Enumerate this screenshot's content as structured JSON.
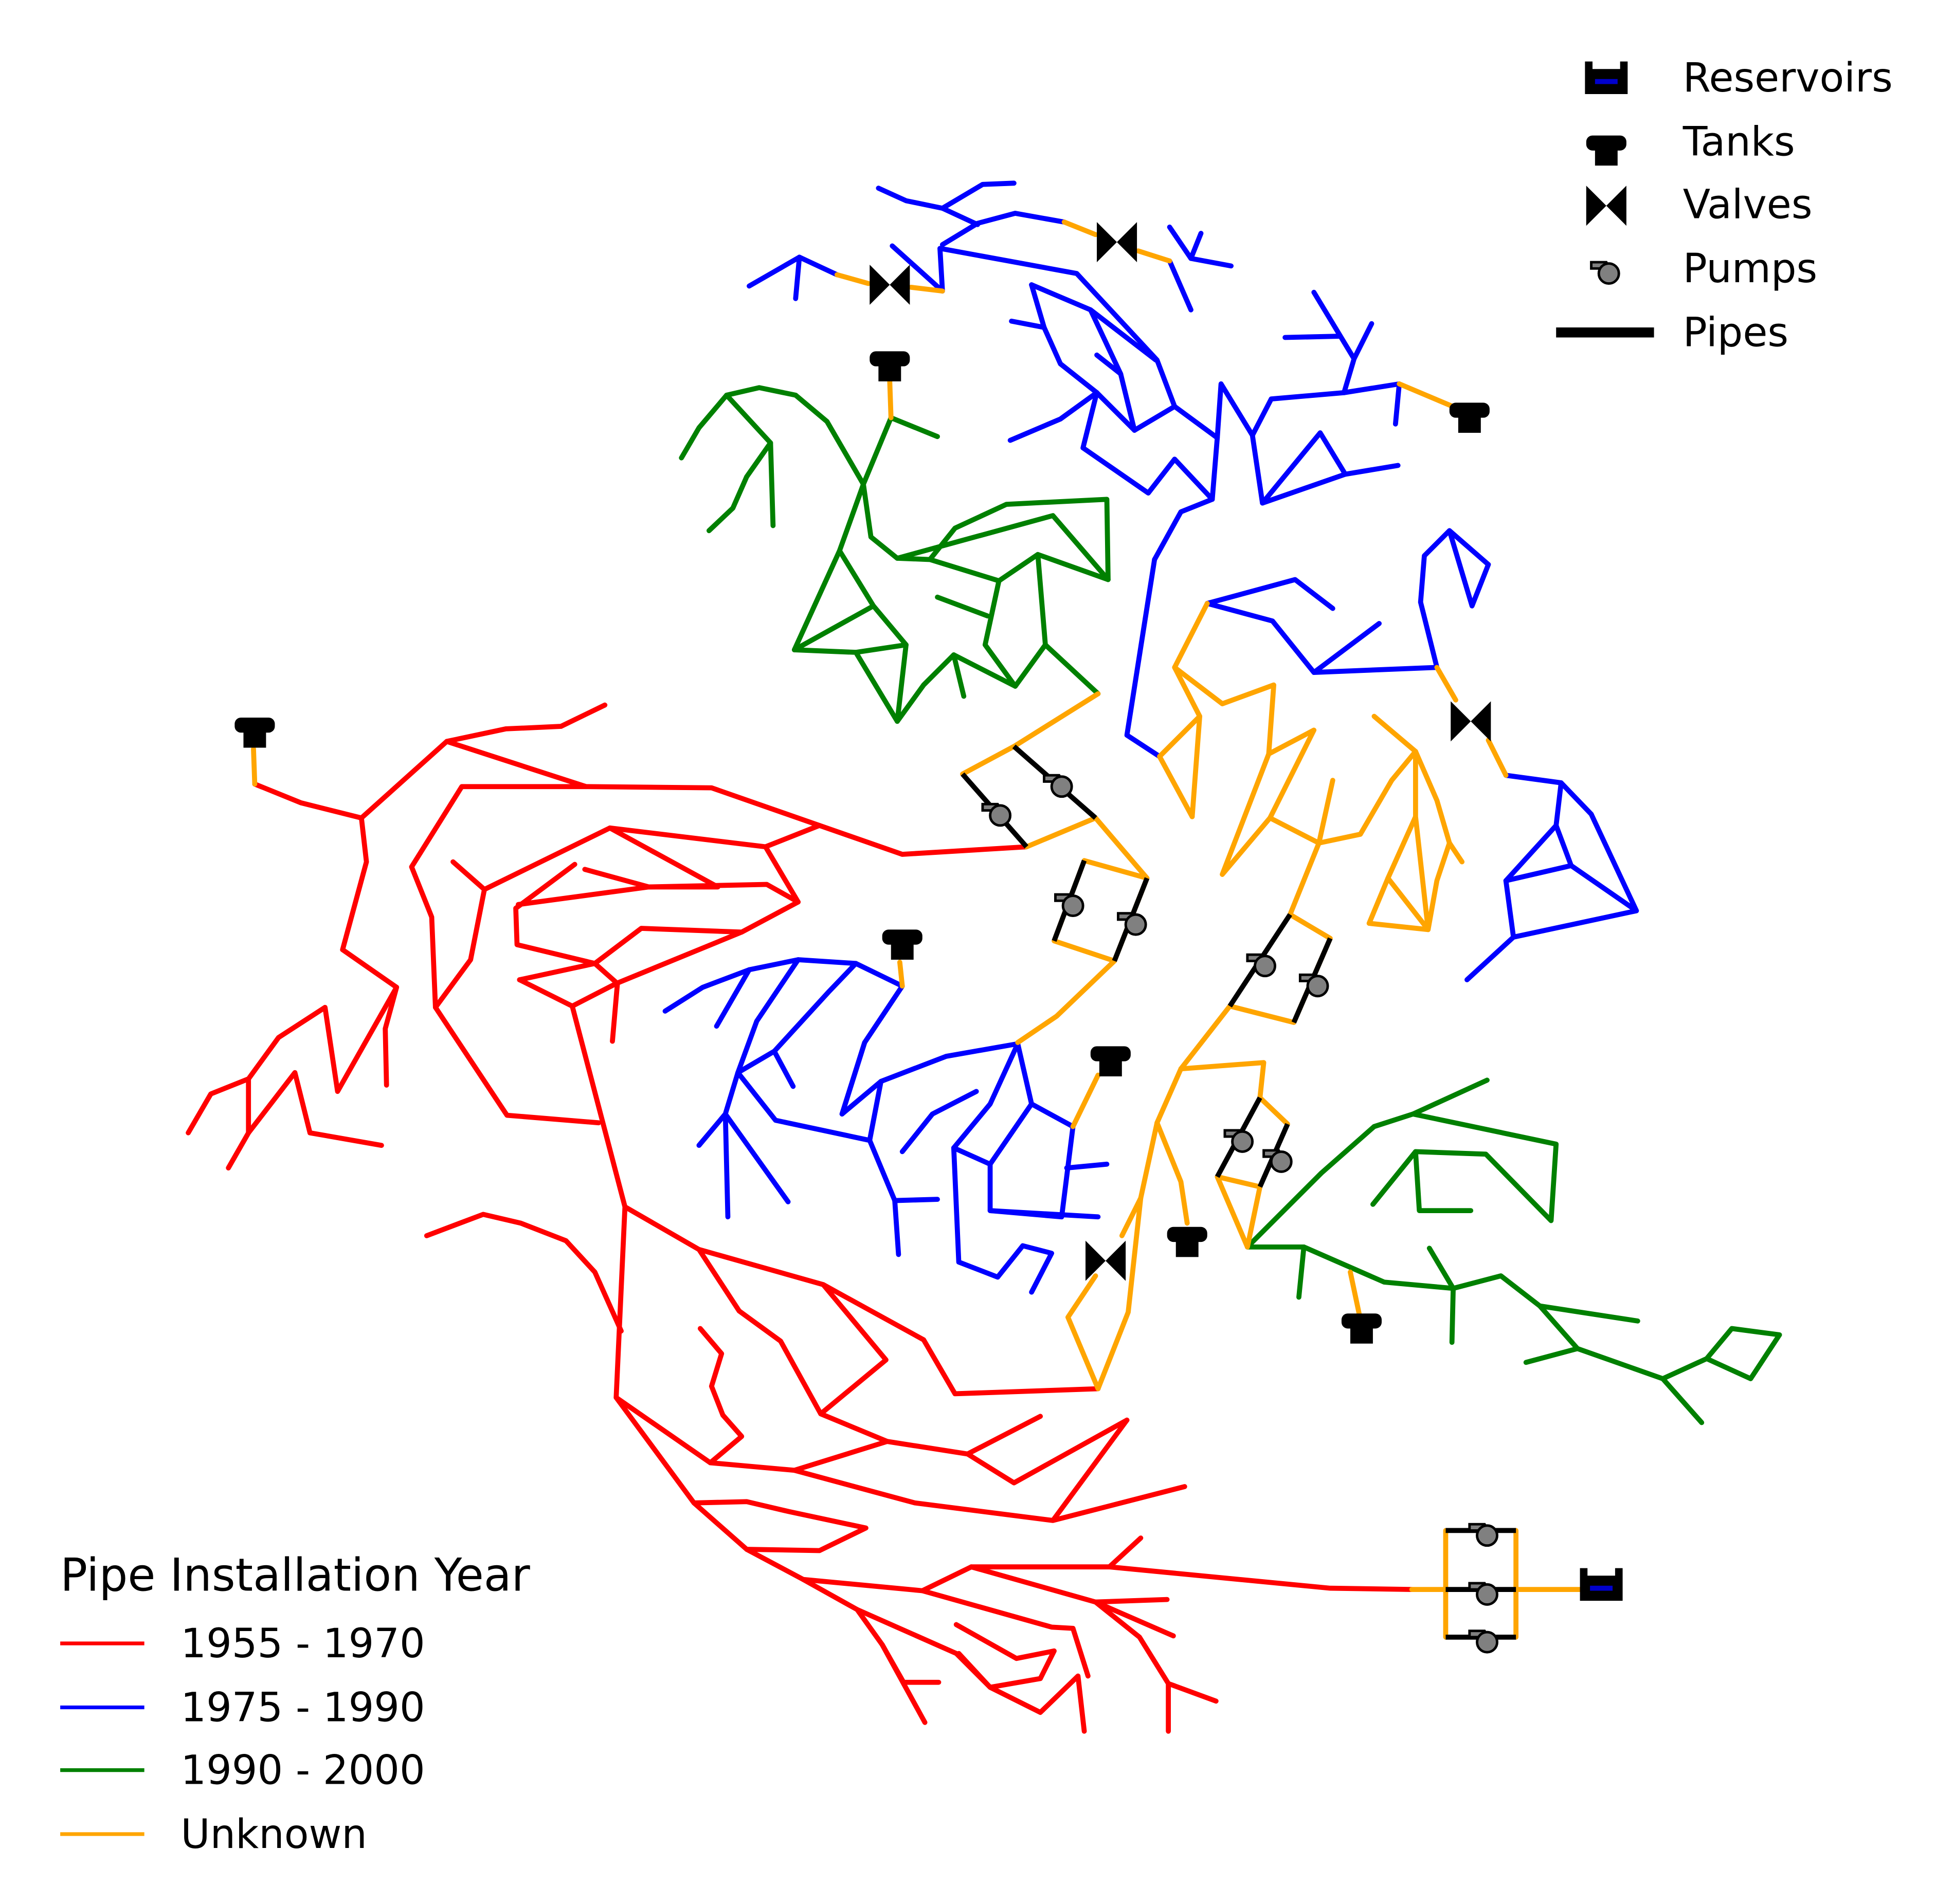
{
  "map": {
    "colors": {
      "period_1955_1970": "#ff0000",
      "period_1975_1990": "#0000ff",
      "period_1990_2000": "#008000",
      "unknown": "#ffa500",
      "reservoir_fill": "#000000",
      "reservoir_accent": "#0000cc",
      "tank": "#000000",
      "valve": "#000000",
      "pump": "#808080"
    },
    "network_symbols": {
      "title": "",
      "items": [
        {
          "label": "Reservoirs",
          "icon": "reservoir-icon"
        },
        {
          "label": "Tanks",
          "icon": "tank-icon"
        },
        {
          "label": "Valves",
          "icon": "valve-icon"
        },
        {
          "label": "Pumps",
          "icon": "pump-icon"
        },
        {
          "label": "Pipes",
          "icon": "pipe-line-icon"
        }
      ]
    },
    "year_legend": {
      "title": "Pipe Installation Year",
      "items": [
        {
          "label": "1955 - 1970",
          "color": "#ff0000"
        },
        {
          "label": "1975 - 1990",
          "color": "#0000ff"
        },
        {
          "label": "1990 - 2000",
          "color": "#008000"
        },
        {
          "label": "Unknown",
          "color": "#ffa500"
        }
      ]
    }
  }
}
